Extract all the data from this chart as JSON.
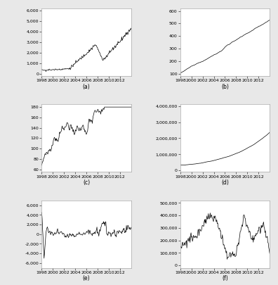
{
  "title_a": "(a)",
  "title_b": "(b)",
  "title_c": "(c)",
  "title_d": "(d)",
  "title_e": "(e)",
  "title_f": "(f)",
  "n_months": 192,
  "line_color": "#000000",
  "line_width": 0.5,
  "bg_color": "#e8e8e8",
  "panel_bg": "#ffffff",
  "tick_fontsize": 4.5,
  "label_fontsize": 5.5,
  "yticks_a": [
    0,
    1000,
    2000,
    3000,
    4000,
    5000,
    6000
  ],
  "ylabels_a": [
    "0",
    "1,000",
    "2,000",
    "3,000",
    "4,000",
    "5,000",
    "6,000"
  ],
  "ylim_a": [
    -200,
    6200
  ],
  "yticks_b": [
    100,
    200,
    300,
    400,
    500,
    600
  ],
  "ylabels_b": [
    "100",
    "200",
    "300",
    "400",
    "500",
    "600"
  ],
  "ylim_b": [
    80,
    620
  ],
  "yticks_c": [
    60,
    80,
    100,
    120,
    140,
    160,
    180
  ],
  "ylabels_c": [
    "60",
    "80",
    "100",
    "120",
    "140",
    "160",
    "180"
  ],
  "ylim_c": [
    55,
    185
  ],
  "yticks_d": [
    0,
    1000000,
    2000000,
    3000000,
    4000000
  ],
  "ylabels_d": [
    "0",
    "1,000,000",
    "2,000,000",
    "3,000,000",
    "4,000,000"
  ],
  "ylim_d": [
    -100000,
    4100000
  ],
  "yticks_e": [
    -6000,
    -4000,
    -2000,
    0,
    2000,
    4000,
    6000
  ],
  "ylabels_e": [
    "-6,000",
    "-4,000",
    "-2,000",
    "0",
    "2,000",
    "4,000",
    "6,000"
  ],
  "ylim_e": [
    -7000,
    7000
  ],
  "yticks_f": [
    0,
    100000,
    200000,
    300000,
    400000,
    500000
  ],
  "ylabels_f": [
    "0",
    "100,000",
    "200,000",
    "300,000",
    "400,000",
    "500,000"
  ],
  "ylim_f": [
    -20000,
    520000
  ],
  "xtick_years": [
    1998,
    2000,
    2002,
    2004,
    2006,
    2008,
    2010,
    2012
  ]
}
